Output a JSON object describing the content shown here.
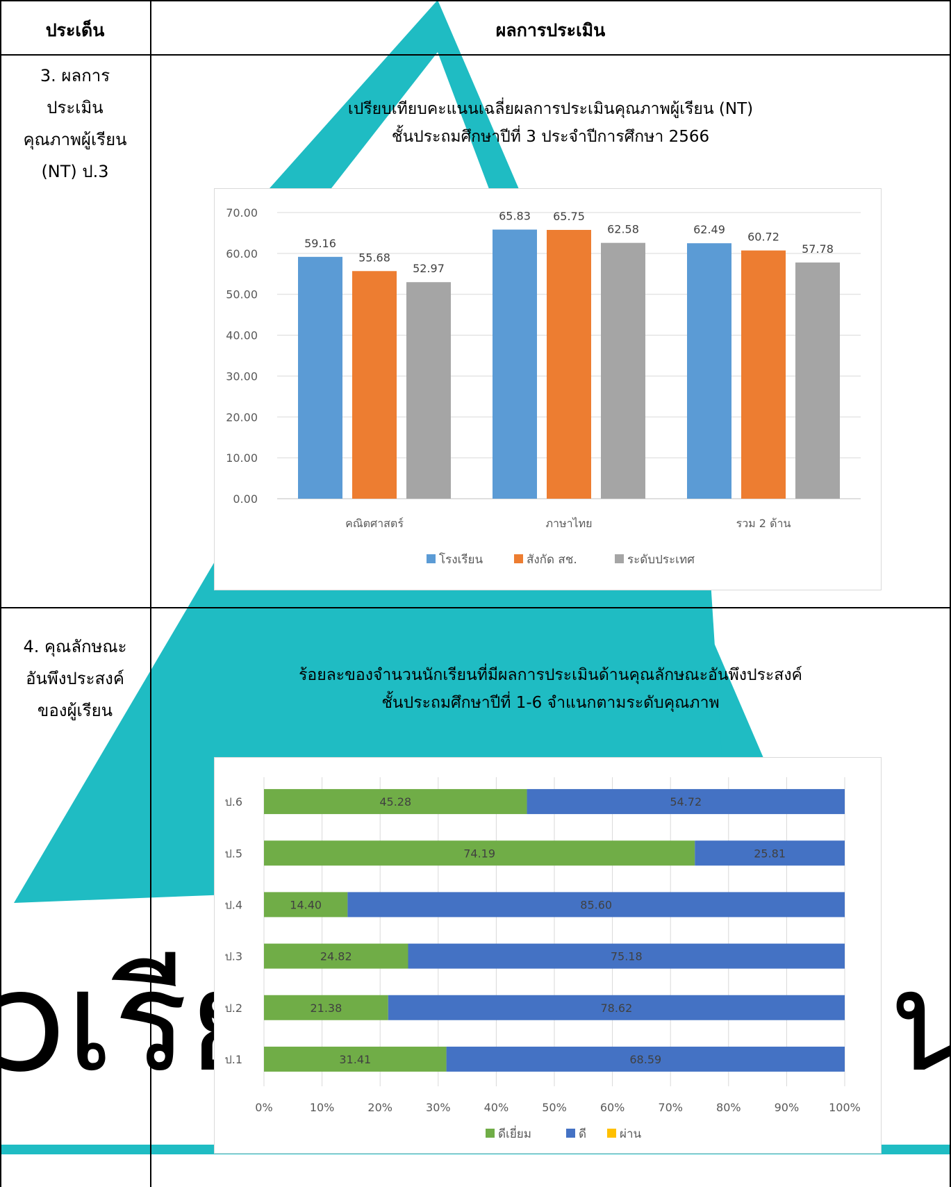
{
  "table": {
    "header_issue": "ประเด็น",
    "header_result": "ผลการประเมิน"
  },
  "rows": [
    {
      "issue_lines": [
        "3. ผลการ",
        "ประเมิน",
        "คุณภาพผู้เรียน",
        "(NT) ป.3"
      ],
      "chart_title_lines": [
        "เปรียบเทียบคะแนนเฉลี่ยผลการประเมินคุณภาพผู้เรียน (NT)",
        "ชั้นประถมศึกษาปีที่ 3  ประจำปีการศึกษา 2566"
      ]
    },
    {
      "issue_lines": [
        "4. คุณลักษณะ",
        "อันพึงประสงค์",
        "ของผู้เรียน"
      ],
      "chart_title_lines": [
        "ร้อยละของจำนวนนักเรียนที่มีผลการประเมินด้านคุณลักษณะอันพึงประสงค์",
        "ชั้นประถมศึกษาปีที่ 1-6 จำแนกตามระดับคุณภาพ"
      ]
    }
  ],
  "background": {
    "watermark_text": "ɔเรีย",
    "watermark_text_right": "น"
  },
  "chart_data": [
    {
      "type": "bar",
      "categories": [
        "คณิตศาสตร์",
        "ภาษาไทย",
        "รวม 2 ด้าน"
      ],
      "series": [
        {
          "name": "โรงเรียน",
          "values": [
            59.16,
            65.83,
            62.49
          ],
          "color": "#5b9bd5"
        },
        {
          "name": "สังกัด สช.",
          "values": [
            55.68,
            65.75,
            60.72
          ],
          "color": "#ed7d31"
        },
        {
          "name": "ระดับประเทศ",
          "values": [
            52.97,
            62.58,
            57.78
          ],
          "color": "#a5a5a5"
        }
      ],
      "ylim": [
        0,
        70
      ],
      "y_ticks": [
        "0.00",
        "10.00",
        "20.00",
        "30.00",
        "40.00",
        "50.00",
        "60.00",
        "70.00"
      ],
      "grid": true,
      "legend": "bottom"
    },
    {
      "type": "bar",
      "orientation": "horizontal",
      "stacked": "percent",
      "categories": [
        "ป.6",
        "ป.5",
        "ป.4",
        "ป.3",
        "ป.2",
        "ป.1"
      ],
      "series": [
        {
          "name": "ดีเยี่ยม",
          "values": [
            45.28,
            74.19,
            14.4,
            24.82,
            21.38,
            31.41
          ],
          "color": "#70ad47"
        },
        {
          "name": "ดี",
          "values": [
            54.72,
            25.81,
            85.6,
            75.18,
            78.62,
            68.59
          ],
          "color": "#4472c4"
        },
        {
          "name": "ผ่าน",
          "values": [
            0,
            0,
            0,
            0,
            0,
            0
          ],
          "color": "#ffc000"
        }
      ],
      "x_ticks": [
        "0%",
        "10%",
        "20%",
        "30%",
        "40%",
        "50%",
        "60%",
        "70%",
        "80%",
        "90%",
        "100%"
      ],
      "xlim": [
        0,
        100
      ],
      "grid": true,
      "legend": "bottom"
    }
  ]
}
